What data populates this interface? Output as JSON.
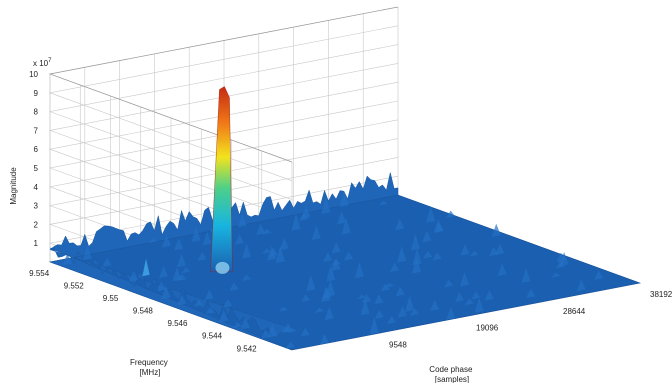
{
  "chart_data": {
    "type": "surface",
    "title": "",
    "xlabel": "Code phase [samples]",
    "ylabel": "Frequency [MHz]",
    "zlabel": "Magnitude",
    "z_multiplier_label": "x 10",
    "z_multiplier_exponent": "7",
    "x_ticks": [
      "9548",
      "19096",
      "28644",
      "38192"
    ],
    "y_ticks": [
      "9.554",
      "9.552",
      "9.55",
      "9.548",
      "9.546",
      "9.544",
      "9.542"
    ],
    "z_ticks": [
      "1",
      "2",
      "3",
      "4",
      "5",
      "6",
      "7",
      "8",
      "9",
      "10"
    ],
    "xlim": [
      0,
      38192
    ],
    "ylim": [
      9.541,
      9.555
    ],
    "zlim": [
      0,
      10
    ],
    "grid": true,
    "colormap": "jet",
    "peak": {
      "code_phase": 10500,
      "frequency_mhz": 9.5505,
      "magnitude": 9.7
    },
    "secondary_peak": {
      "code_phase": 2000,
      "frequency_mhz": 9.5505,
      "magnitude": 1.5
    },
    "noise_floor": 1.0
  },
  "axes": {
    "xlabel_line1": "Code phase",
    "xlabel_line2": "[samples]",
    "ylabel_line1": "Frequency",
    "ylabel_line2": "[MHz]"
  }
}
